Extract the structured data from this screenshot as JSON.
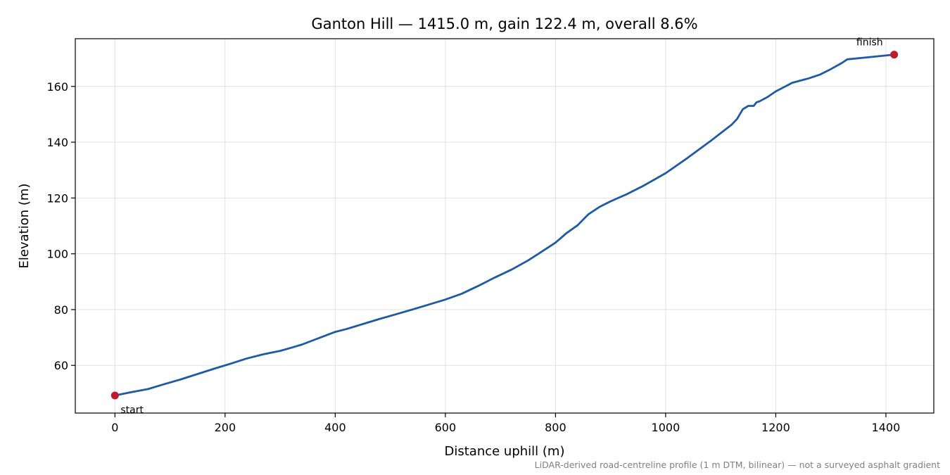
{
  "chart_data": {
    "type": "line",
    "title": "Ganton Hill — 1415.0 m, gain 122.4 m, overall 8.6%",
    "xlabel": "Distance uphill (m)",
    "ylabel": "Elevation (m)",
    "xlim": [
      -72,
      1487
    ],
    "ylim": [
      42.9,
      177.1
    ],
    "xticks": [
      0,
      200,
      400,
      600,
      800,
      1000,
      1200,
      1400
    ],
    "yticks": [
      60,
      80,
      100,
      120,
      140,
      160
    ],
    "grid": true,
    "series": [
      {
        "color": "#1f5aa6",
        "x": [
          0,
          30,
          60,
          90,
          120,
          150,
          180,
          210,
          240,
          270,
          300,
          320,
          340,
          360,
          380,
          400,
          420,
          450,
          480,
          510,
          540,
          570,
          600,
          630,
          660,
          690,
          720,
          750,
          780,
          800,
          820,
          840,
          860,
          880,
          900,
          930,
          960,
          1000,
          1040,
          1080,
          1120,
          1130,
          1140,
          1150,
          1160,
          1165,
          1170,
          1185,
          1200,
          1230,
          1260,
          1280,
          1300,
          1320,
          1330,
          1360,
          1390,
          1415
        ],
        "y": [
          49.2,
          50.4,
          51.5,
          53.3,
          55,
          56.9,
          58.8,
          60.6,
          62.5,
          64,
          65.2,
          66.3,
          67.5,
          69,
          70.5,
          72,
          73,
          74.8,
          76.6,
          78.3,
          80,
          81.8,
          83.6,
          85.7,
          88.5,
          91.5,
          94.3,
          97.6,
          101.4,
          104,
          107.4,
          110.2,
          114.2,
          116.8,
          118.8,
          121.4,
          124.4,
          128.9,
          134.4,
          140.2,
          146.3,
          148.4,
          151.8,
          153,
          153,
          154.3,
          154.6,
          156.2,
          158.2,
          161.3,
          162.9,
          164.2,
          166.2,
          168.4,
          169.7,
          170.3,
          170.9,
          171.4
        ]
      }
    ],
    "markers": [
      {
        "label": "start",
        "x": 0,
        "y": 49.2,
        "color": "#c0192b"
      },
      {
        "label": "finish",
        "x": 1415,
        "y": 171.4,
        "color": "#c0192b"
      }
    ]
  },
  "footnote": "LiDAR-derived road-centreline profile (1 m DTM, bilinear) — not a surveyed asphalt gradient"
}
